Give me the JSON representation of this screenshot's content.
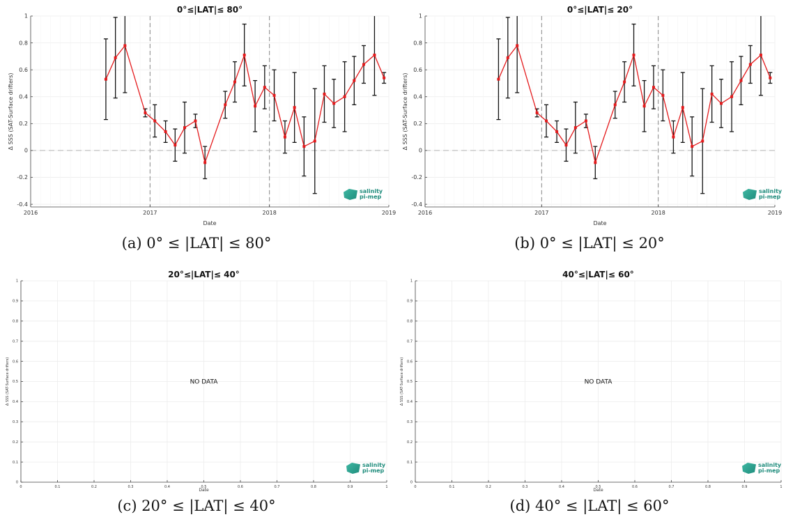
{
  "logo": {
    "line1": "salinity",
    "line2": "pi-mep"
  },
  "chart_data": [
    {
      "type": "line",
      "title": "0°≤|LAT|≤ 80°",
      "caption": "(a) 0° ≤ |LAT| ≤ 80°",
      "xlabel": "Date",
      "ylabel": "Δ SSS (SAT-Surface drifters)",
      "xlim": [
        2016,
        2019
      ],
      "ylim": [
        -0.42,
        1.0
      ],
      "xticks": [
        "2016",
        "2017",
        "2018",
        "2019"
      ],
      "yticks": [
        "-0.4",
        "-0.2",
        "0",
        "0.2",
        "0.4",
        "0.6",
        "0.8",
        "1"
      ],
      "grid": true,
      "series": [
        {
          "color": "#e41a1c",
          "points": [
            {
              "x": 2016.63,
              "y": 0.53,
              "err": 0.3
            },
            {
              "x": 2016.71,
              "y": 0.69,
              "err": 0.3
            },
            {
              "x": 2016.79,
              "y": 0.78,
              "err": 0.35
            },
            {
              "x": 2016.96,
              "y": 0.28,
              "err": 0.03
            },
            {
              "x": 2017.04,
              "y": 0.22,
              "err": 0.12
            },
            {
              "x": 2017.13,
              "y": 0.14,
              "err": 0.08
            },
            {
              "x": 2017.21,
              "y": 0.04,
              "err": 0.12
            },
            {
              "x": 2017.29,
              "y": 0.17,
              "err": 0.19
            },
            {
              "x": 2017.38,
              "y": 0.22,
              "err": 0.05
            },
            {
              "x": 2017.46,
              "y": -0.09,
              "err": 0.12
            },
            {
              "x": 2017.63,
              "y": 0.34,
              "err": 0.1
            },
            {
              "x": 2017.71,
              "y": 0.51,
              "err": 0.15
            },
            {
              "x": 2017.79,
              "y": 0.71,
              "err": 0.23
            },
            {
              "x": 2017.88,
              "y": 0.33,
              "err": 0.19
            },
            {
              "x": 2017.96,
              "y": 0.47,
              "err": 0.16
            },
            {
              "x": 2018.04,
              "y": 0.41,
              "err": 0.19
            },
            {
              "x": 2018.13,
              "y": 0.1,
              "err": 0.12
            },
            {
              "x": 2018.21,
              "y": 0.32,
              "err": 0.26
            },
            {
              "x": 2018.29,
              "y": 0.03,
              "err": 0.22
            },
            {
              "x": 2018.38,
              "y": 0.07,
              "err": 0.39
            },
            {
              "x": 2018.46,
              "y": 0.42,
              "err": 0.21
            },
            {
              "x": 2018.54,
              "y": 0.35,
              "err": 0.18
            },
            {
              "x": 2018.63,
              "y": 0.4,
              "err": 0.26
            },
            {
              "x": 2018.71,
              "y": 0.52,
              "err": 0.18
            },
            {
              "x": 2018.79,
              "y": 0.64,
              "err": 0.14
            },
            {
              "x": 2018.88,
              "y": 0.71,
              "err": 0.3
            },
            {
              "x": 2018.96,
              "y": 0.54,
              "err": 0.04
            }
          ]
        }
      ]
    },
    {
      "type": "line",
      "title": "0°≤|LAT|≤ 20°",
      "caption": "(b) 0° ≤ |LAT| ≤ 20°",
      "xlabel": "Date",
      "ylabel": "Δ SSS (SAT-Surface drifters)",
      "xlim": [
        2016,
        2019
      ],
      "ylim": [
        -0.42,
        1.0
      ],
      "xticks": [
        "2016",
        "2017",
        "2018",
        "2019"
      ],
      "yticks": [
        "-0.4",
        "-0.2",
        "0",
        "0.2",
        "0.4",
        "0.6",
        "0.8",
        "1"
      ],
      "grid": true,
      "series": [
        {
          "color": "#e41a1c",
          "points": [
            {
              "x": 2016.63,
              "y": 0.53,
              "err": 0.3
            },
            {
              "x": 2016.71,
              "y": 0.69,
              "err": 0.3
            },
            {
              "x": 2016.79,
              "y": 0.78,
              "err": 0.35
            },
            {
              "x": 2016.96,
              "y": 0.28,
              "err": 0.03
            },
            {
              "x": 2017.04,
              "y": 0.22,
              "err": 0.12
            },
            {
              "x": 2017.13,
              "y": 0.14,
              "err": 0.08
            },
            {
              "x": 2017.21,
              "y": 0.04,
              "err": 0.12
            },
            {
              "x": 2017.29,
              "y": 0.17,
              "err": 0.19
            },
            {
              "x": 2017.38,
              "y": 0.22,
              "err": 0.05
            },
            {
              "x": 2017.46,
              "y": -0.09,
              "err": 0.12
            },
            {
              "x": 2017.63,
              "y": 0.34,
              "err": 0.1
            },
            {
              "x": 2017.71,
              "y": 0.51,
              "err": 0.15
            },
            {
              "x": 2017.79,
              "y": 0.71,
              "err": 0.23
            },
            {
              "x": 2017.88,
              "y": 0.33,
              "err": 0.19
            },
            {
              "x": 2017.96,
              "y": 0.47,
              "err": 0.16
            },
            {
              "x": 2018.04,
              "y": 0.41,
              "err": 0.19
            },
            {
              "x": 2018.13,
              "y": 0.1,
              "err": 0.12
            },
            {
              "x": 2018.21,
              "y": 0.32,
              "err": 0.26
            },
            {
              "x": 2018.29,
              "y": 0.03,
              "err": 0.22
            },
            {
              "x": 2018.38,
              "y": 0.07,
              "err": 0.39
            },
            {
              "x": 2018.46,
              "y": 0.42,
              "err": 0.21
            },
            {
              "x": 2018.54,
              "y": 0.35,
              "err": 0.18
            },
            {
              "x": 2018.63,
              "y": 0.4,
              "err": 0.26
            },
            {
              "x": 2018.71,
              "y": 0.52,
              "err": 0.18
            },
            {
              "x": 2018.79,
              "y": 0.64,
              "err": 0.14
            },
            {
              "x": 2018.88,
              "y": 0.71,
              "err": 0.3
            },
            {
              "x": 2018.96,
              "y": 0.54,
              "err": 0.04
            }
          ]
        }
      ]
    },
    {
      "type": "line",
      "title": "20°≤|LAT|≤ 40°",
      "caption": "(c) 20° ≤ |LAT| ≤ 40°",
      "xlabel": "Date",
      "ylabel": "Δ SSS (SAT-Surface drifters)",
      "xlim": [
        0,
        1
      ],
      "ylim": [
        0,
        1
      ],
      "xticks": [
        "0",
        "0.1",
        "0.2",
        "0.3",
        "0.4",
        "0.5",
        "0.6",
        "0.7",
        "0.8",
        "0.9",
        "1"
      ],
      "yticks": [
        "0",
        "0.1",
        "0.2",
        "0.3",
        "0.4",
        "0.5",
        "0.6",
        "0.7",
        "0.8",
        "0.9",
        "1"
      ],
      "grid": true,
      "annotation": "NO DATA",
      "series": []
    },
    {
      "type": "line",
      "title": "40°≤|LAT|≤ 60°",
      "caption": "(d) 40° ≤ |LAT| ≤ 60°",
      "xlabel": "Date",
      "ylabel": "Δ SSS (SAT-Surface drifters)",
      "xlim": [
        0,
        1
      ],
      "ylim": [
        0,
        1
      ],
      "xticks": [
        "0",
        "0.1",
        "0.2",
        "0.3",
        "0.4",
        "0.5",
        "0.6",
        "0.7",
        "0.8",
        "0.9",
        "1"
      ],
      "yticks": [
        "0",
        "0.1",
        "0.2",
        "0.3",
        "0.4",
        "0.5",
        "0.6",
        "0.7",
        "0.8",
        "0.9",
        "1"
      ],
      "grid": true,
      "annotation": "NO DATA",
      "series": []
    }
  ]
}
